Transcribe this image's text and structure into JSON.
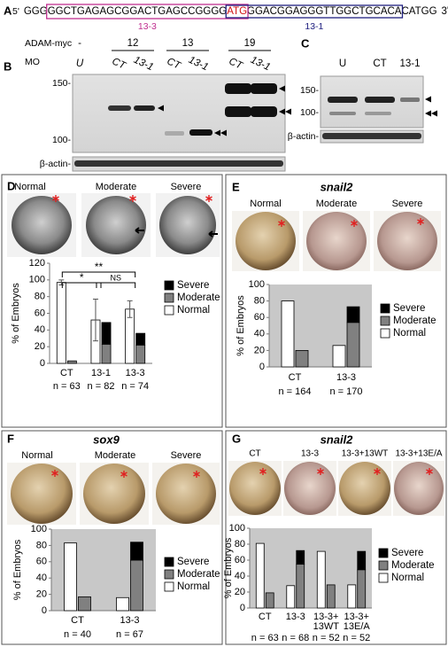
{
  "panel_a": {
    "label": "A",
    "prime5": "5'",
    "seq": [
      "GGG",
      "GGCTGAGAGCGGACTGAGCCGGGG",
      "ATG",
      "GGACGGAGGGTTGGCTGCACA",
      "CATGG"
    ],
    "prime3": "3'",
    "box_labels": [
      "13-3",
      "13-1"
    ]
  },
  "panel_b": {
    "label": "B",
    "row1_label": "ADAM-myc",
    "row1": [
      "-",
      "12",
      "13",
      "19"
    ],
    "row2_label": "MO",
    "lanes": [
      "U",
      "CT",
      "13-1",
      "CT",
      "13-1",
      "CT",
      "13-1"
    ],
    "markers": [
      "150-",
      "100-"
    ],
    "loading": "β-actin-"
  },
  "panel_c": {
    "label": "C",
    "lanes": [
      "U",
      "CT",
      "13-1"
    ],
    "markers": [
      "150-",
      "100-"
    ],
    "loading": "β-actin-"
  },
  "panels": [
    {
      "label": "D",
      "photo_labels": [
        "Normal",
        "Moderate",
        "Severe"
      ]
    },
    {
      "label": "E",
      "title": "snail2",
      "photo_labels": [
        "Normal",
        "Moderate",
        "Severe"
      ]
    },
    {
      "label": "F",
      "title": "sox9",
      "photo_labels": [
        "Normal",
        "Moderate",
        "Severe"
      ]
    },
    {
      "label": "G",
      "title": "snail2",
      "photo_labels": [
        "CT",
        "13-3",
        "13-3+13WT",
        "13-3+13E/A"
      ]
    }
  ],
  "chart_data": [
    {
      "type": "bar",
      "ylabel": "% of Embryos",
      "categories": [
        "CT",
        "13-1",
        "13-3"
      ],
      "n_labels": [
        "n = 63",
        "n = 82",
        "n = 74"
      ],
      "ylim": [
        0,
        120
      ],
      "yticks": [
        0,
        20,
        40,
        60,
        80,
        100,
        120
      ],
      "background": "#ffffff",
      "legend": "right",
      "series": [
        {
          "name": "Severe",
          "color": "#000000",
          "values": [
            0,
            26,
            14
          ]
        },
        {
          "name": "Moderate",
          "color": "#808080",
          "values": [
            3,
            23,
            22
          ]
        },
        {
          "name": "Normal",
          "color": "#ffffff",
          "values": [
            97,
            52,
            65
          ],
          "errors": [
            3,
            25,
            10
          ]
        }
      ],
      "brackets": [
        {
          "label": "*",
          "from": 0,
          "to": 1
        },
        {
          "label": "**",
          "from": 0,
          "to": 2
        },
        {
          "label": "NS",
          "from": 1,
          "to": 2
        }
      ]
    },
    {
      "type": "bar",
      "ylabel": "% of Embryos",
      "categories": [
        "CT",
        "13-3"
      ],
      "n_labels": [
        "n = 164",
        "n = 170"
      ],
      "ylim": [
        0,
        100
      ],
      "yticks": [
        0,
        20,
        40,
        60,
        80,
        100
      ],
      "background": "#c8c8c8",
      "legend": "right",
      "series": [
        {
          "name": "Severe",
          "color": "#000000",
          "values": [
            0,
            19
          ]
        },
        {
          "name": "Moderate",
          "color": "#808080",
          "values": [
            20,
            54
          ]
        },
        {
          "name": "Normal",
          "color": "#ffffff",
          "values": [
            80,
            26
          ]
        }
      ]
    },
    {
      "type": "bar",
      "ylabel": "% of Embryos",
      "categories": [
        "CT",
        "13-3"
      ],
      "n_labels": [
        "n = 40",
        "n = 67"
      ],
      "ylim": [
        0,
        100
      ],
      "yticks": [
        0,
        20,
        40,
        60,
        80,
        100
      ],
      "background": "#c8c8c8",
      "legend": "right",
      "series": [
        {
          "name": "Severe",
          "color": "#000000",
          "values": [
            0,
            22
          ]
        },
        {
          "name": "Moderate",
          "color": "#808080",
          "values": [
            17,
            62
          ]
        },
        {
          "name": "Normal",
          "color": "#ffffff",
          "values": [
            83,
            16
          ]
        }
      ]
    },
    {
      "type": "bar",
      "ylabel": "% of Embryos",
      "categories": [
        "CT",
        "13-3",
        [
          "13-3+",
          "13WT"
        ],
        [
          "13-3+",
          "13E/A"
        ]
      ],
      "n_labels": [
        "n = 63",
        "n = 68",
        "n = 52",
        "n = 52"
      ],
      "ylim": [
        0,
        100
      ],
      "yticks": [
        0,
        20,
        40,
        60,
        80,
        100
      ],
      "background": "#c8c8c8",
      "legend": "right",
      "series": [
        {
          "name": "Severe",
          "color": "#000000",
          "values": [
            0,
            17,
            0,
            23
          ]
        },
        {
          "name": "Moderate",
          "color": "#808080",
          "values": [
            19,
            55,
            29,
            48
          ]
        },
        {
          "name": "Normal",
          "color": "#ffffff",
          "values": [
            81,
            28,
            71,
            29
          ]
        }
      ]
    }
  ]
}
